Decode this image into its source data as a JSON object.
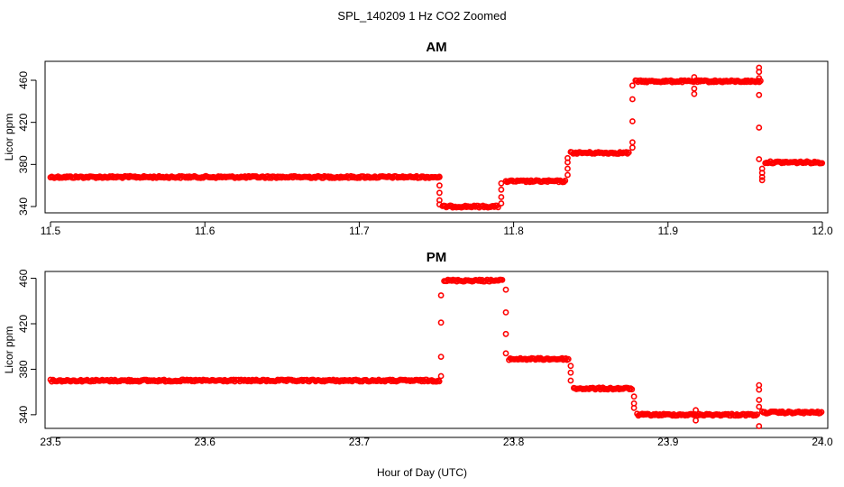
{
  "figure": {
    "title": "SPL_140209  1 Hz CO2 Zoomed",
    "xlabel": "Hour of Day (UTC)"
  },
  "colors": {
    "points": "#ff0000",
    "axes": "#000000",
    "background": "#ffffff"
  },
  "chart_data": [
    {
      "type": "scatter",
      "title": "AM",
      "ylabel": "Licor ppm",
      "xlim": [
        11.5,
        12.0
      ],
      "ylim": [
        334,
        478
      ],
      "xticks": [
        "11.5",
        "11.6",
        "11.7",
        "11.8",
        "11.9",
        "12.0"
      ],
      "yticks": [
        "340",
        "380",
        "420",
        "460"
      ],
      "marker": "open-circle",
      "segments": [
        {
          "x_start": 11.5,
          "x_end": 11.752,
          "y": 368
        },
        {
          "x_start": 11.754,
          "x_end": 11.79,
          "y": 340
        },
        {
          "x_start": 11.795,
          "x_end": 11.834,
          "y": 364
        },
        {
          "x_start": 11.837,
          "x_end": 11.875,
          "y": 391
        },
        {
          "x_start": 11.879,
          "x_end": 11.96,
          "y": 459
        },
        {
          "x_start": 11.963,
          "x_end": 12.0,
          "y": 382
        }
      ],
      "transitions": [
        {
          "x": 11.752,
          "y": [
            368,
            360,
            353,
            346,
            342
          ]
        },
        {
          "x": 11.792,
          "y": [
            343,
            349,
            356,
            362
          ]
        },
        {
          "x": 11.835,
          "y": [
            370,
            376,
            382,
            386
          ]
        },
        {
          "x": 11.877,
          "y": [
            396,
            401,
            421,
            442,
            455
          ]
        },
        {
          "x": 11.917,
          "y": [
            447,
            452,
            463
          ]
        },
        {
          "x": 11.959,
          "y": [
            472,
            468,
            462,
            446,
            415,
            385
          ]
        },
        {
          "x": 11.961,
          "y": [
            365,
            368,
            372,
            376
          ]
        }
      ]
    },
    {
      "type": "scatter",
      "title": "PM",
      "ylabel": "Licor ppm",
      "xlim": [
        23.5,
        24.0
      ],
      "ylim": [
        328,
        466
      ],
      "xticks": [
        "23.5",
        "23.6",
        "23.7",
        "23.8",
        "23.9",
        "24.0"
      ],
      "yticks": [
        "340",
        "380",
        "420",
        "460"
      ],
      "marker": "open-circle",
      "segments": [
        {
          "x_start": 23.5,
          "x_end": 23.752,
          "y": 370
        },
        {
          "x_start": 23.755,
          "x_end": 23.793,
          "y": 458
        },
        {
          "x_start": 23.797,
          "x_end": 23.836,
          "y": 389
        },
        {
          "x_start": 23.839,
          "x_end": 23.877,
          "y": 363
        },
        {
          "x_start": 23.88,
          "x_end": 23.958,
          "y": 340
        },
        {
          "x_start": 23.961,
          "x_end": 24.0,
          "y": 342
        }
      ],
      "transitions": [
        {
          "x": 23.753,
          "y": [
            374,
            391,
            421,
            445
          ]
        },
        {
          "x": 23.795,
          "y": [
            450,
            430,
            411,
            394
          ]
        },
        {
          "x": 23.837,
          "y": [
            383,
            377,
            370
          ]
        },
        {
          "x": 23.878,
          "y": [
            356,
            350,
            346
          ]
        },
        {
          "x": 23.918,
          "y": [
            335,
            344
          ]
        },
        {
          "x": 23.959,
          "y": [
            330,
            347,
            353,
            362,
            366
          ]
        }
      ]
    }
  ]
}
